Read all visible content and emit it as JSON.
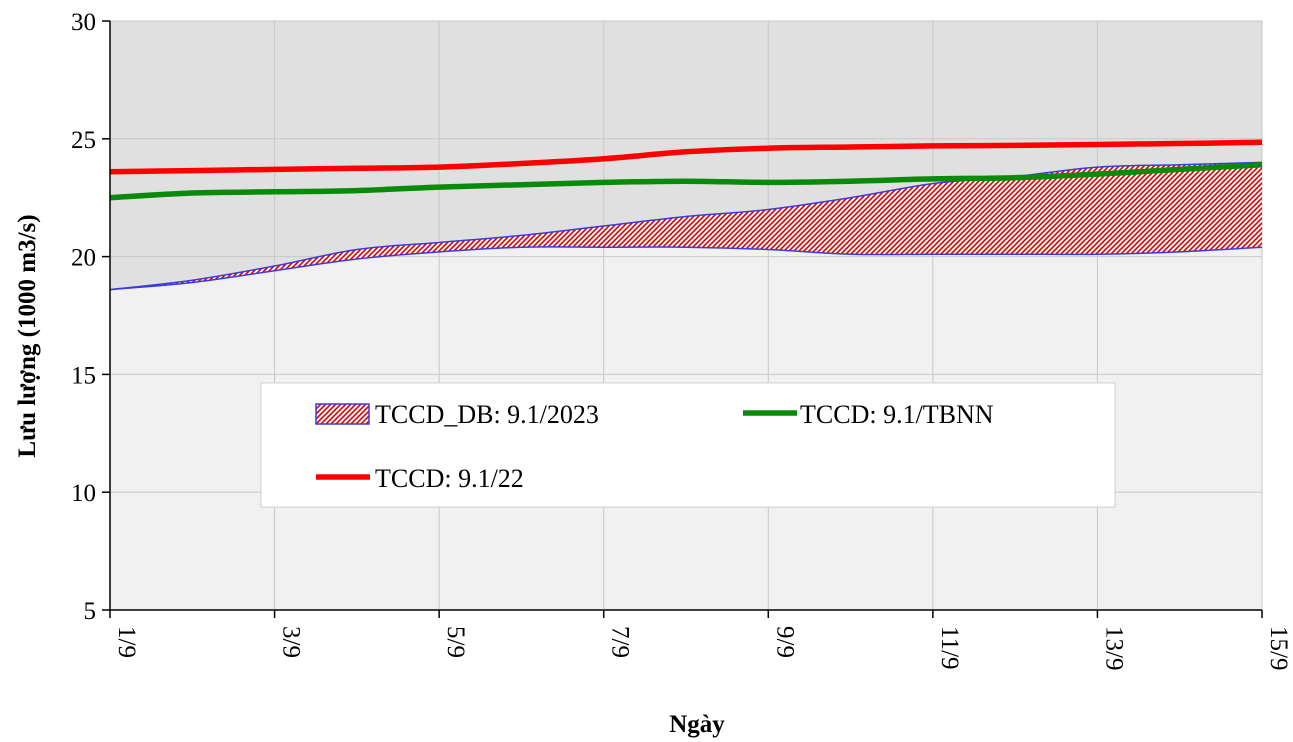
{
  "chart_data": {
    "type": "line",
    "xlabel": "Ngày",
    "ylabel": "Lưu lượng (1000 m3/s)",
    "ylim": [
      5,
      30
    ],
    "yticks": [
      5,
      10,
      15,
      20,
      25,
      30
    ],
    "x": [
      "1/9",
      "2/9",
      "3/9",
      "4/9",
      "5/9",
      "6/9",
      "7/9",
      "8/9",
      "9/9",
      "10/9",
      "11/9",
      "12/9",
      "13/9",
      "14/9",
      "15/9"
    ],
    "xtick_labels": [
      "1/9",
      "3/9",
      "5/9",
      "7/9",
      "9/9",
      "11/9",
      "13/9",
      "15/9"
    ],
    "grid": true,
    "band": {
      "name": "TCCD_DB: 9.1/2023",
      "upper": [
        18.6,
        19.0,
        19.6,
        20.3,
        20.6,
        20.9,
        21.3,
        21.7,
        22.0,
        22.5,
        23.1,
        23.4,
        23.8,
        23.9,
        24.0
      ],
      "lower": [
        18.6,
        18.9,
        19.4,
        19.9,
        20.2,
        20.4,
        20.4,
        20.4,
        20.3,
        20.1,
        20.1,
        20.1,
        20.1,
        20.2,
        20.4
      ],
      "fill_color": "#e00000",
      "edge_color": "#3a3ae0"
    },
    "series": [
      {
        "name": "TCCD: 9.1/TBNN",
        "color": "#0a8a0a",
        "values": [
          22.5,
          22.7,
          22.75,
          22.8,
          22.95,
          23.05,
          23.15,
          23.2,
          23.15,
          23.2,
          23.3,
          23.35,
          23.5,
          23.7,
          23.9
        ]
      },
      {
        "name": "TCCD: 9.1/22",
        "color": "#ff0000",
        "values": [
          23.6,
          23.65,
          23.7,
          23.75,
          23.8,
          23.95,
          24.15,
          24.45,
          24.6,
          24.65,
          24.7,
          24.72,
          24.76,
          24.8,
          24.85
        ]
      }
    ],
    "background": {
      "above_band_color": "#e0e0e0",
      "below_band_color": "#f1f1f1"
    },
    "legend_position": "center-bottom"
  }
}
